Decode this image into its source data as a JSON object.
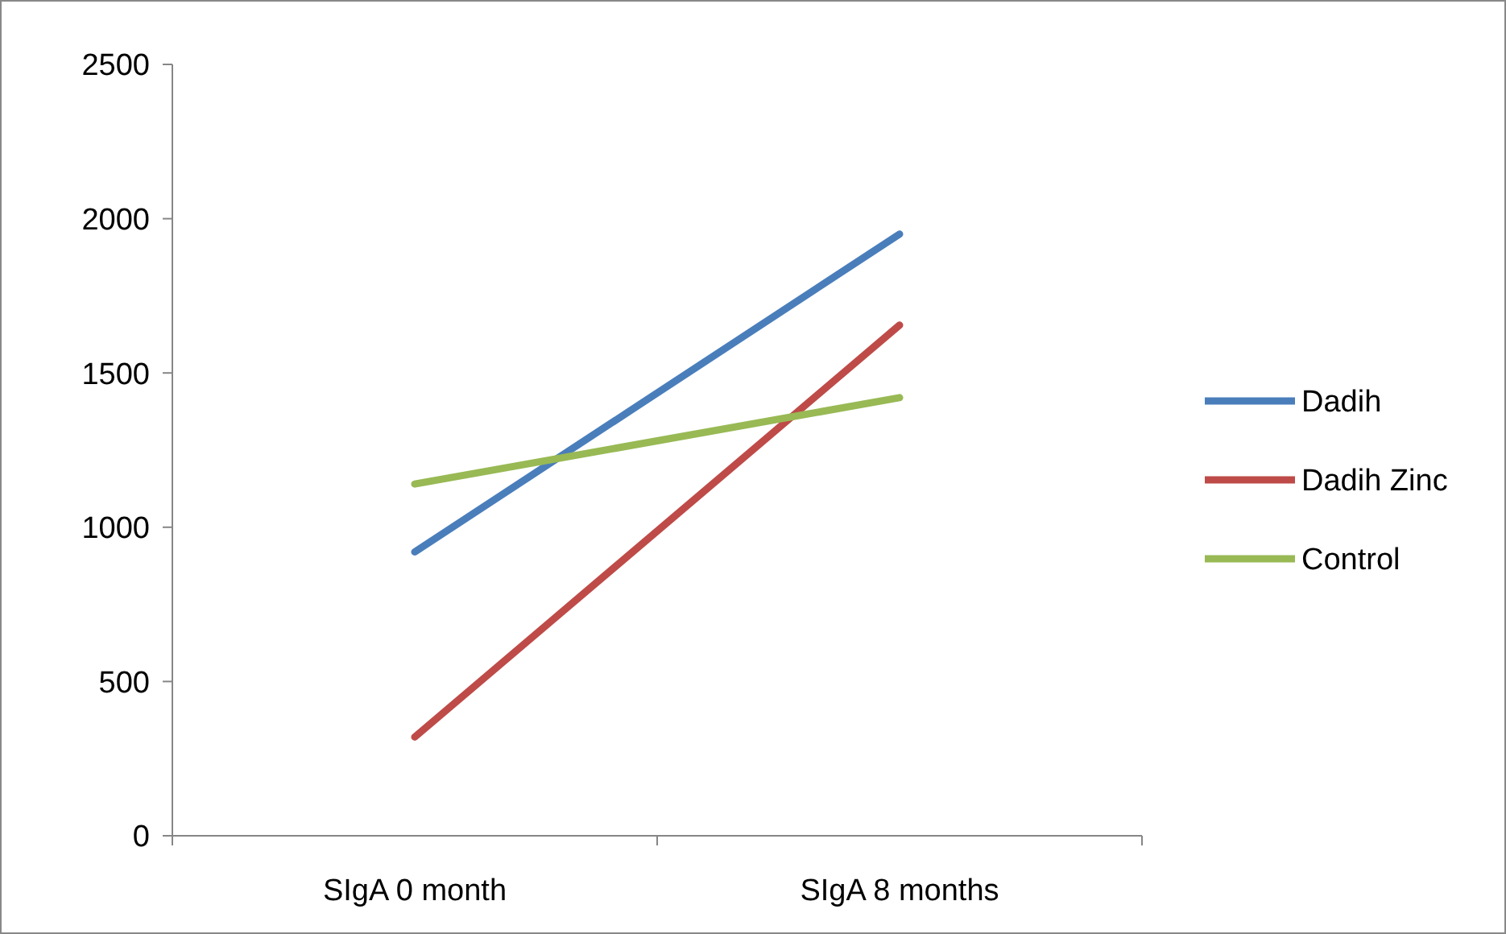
{
  "chart_data": {
    "type": "line",
    "categories": [
      "SIgA 0 month",
      "SIgA 8 months"
    ],
    "series": [
      {
        "name": "Dadih",
        "color": "#4a7ebb",
        "values": [
          920,
          1950
        ]
      },
      {
        "name": "Dadih Zinc",
        "color": "#be4b48",
        "values": [
          320,
          1655
        ]
      },
      {
        "name": "Control",
        "color": "#98b954",
        "values": [
          1140,
          1420
        ]
      }
    ],
    "ylim": [
      0,
      2500
    ],
    "yticks": [
      0,
      500,
      1000,
      1500,
      2000,
      2500
    ],
    "grid": false,
    "legend": "right",
    "marker": "none",
    "line_style": "solid"
  }
}
